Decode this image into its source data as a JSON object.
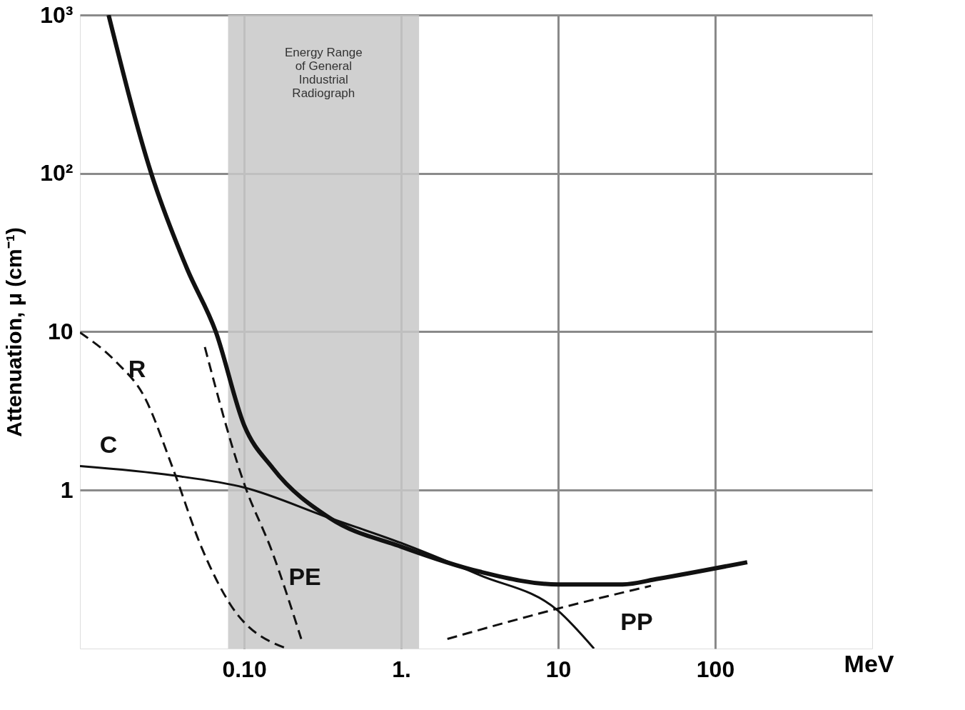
{
  "chart_data": {
    "type": "line",
    "ylabel": "Attenuation, μ (cm⁻¹)",
    "xlabel": "MeV",
    "log": "xy",
    "grid": true,
    "xlim": [
      0.009,
      1000
    ],
    "ylim": [
      0.1,
      1000
    ],
    "xticks": [
      {
        "value": 0.1,
        "label": "0.10"
      },
      {
        "value": 1,
        "label": "1."
      },
      10,
      100
    ],
    "yticks": [
      1,
      10,
      {
        "value": 100,
        "label": "10²"
      },
      {
        "value": 1000,
        "label": "10³"
      }
    ],
    "series": [
      {
        "color": "#111111",
        "line_style": "solid",
        "x": [
          0.0137,
          0.0256,
          0.0433,
          0.066,
          0.1,
          0.152,
          0.351,
          1,
          3.16,
          10,
          25.7,
          43.3,
          160
        ],
        "values": [
          1000,
          100,
          25,
          10,
          2.57,
          1.38,
          0.667,
          0.44,
          0.306,
          0.254,
          0.254,
          0.276,
          0.351
        ]
      },
      {
        "name": "C",
        "color": "#111111",
        "line_style": "solid",
        "x": [
          0.009,
          0.0351,
          0.1,
          0.351,
          1,
          3.16,
          10,
          16.9
        ],
        "values": [
          1.42,
          1.24,
          1.04,
          0.667,
          0.464,
          0.291,
          0.173,
          0.1
        ]
      },
      {
        "name": "R",
        "color": "#111111",
        "line_style": "dashed",
        "x": [
          0.009,
          0.0152,
          0.0231,
          0.0351,
          0.0533,
          0.0811,
          0.187
        ],
        "values": [
          9.9,
          6.5,
          3.9,
          1.38,
          0.44,
          0.192,
          0.1
        ]
      },
      {
        "name": "PE",
        "color": "#111111",
        "line_style": "dashed",
        "x": [
          0.0562,
          0.1,
          0.152,
          0.231
        ],
        "values": [
          8.0,
          1.1,
          0.4,
          0.115
        ]
      },
      {
        "name": "PP",
        "color": "#111111",
        "line_style": "dashed",
        "x": [
          1.97,
          10,
          39
        ],
        "values": [
          0.115,
          0.179,
          0.249
        ]
      }
    ],
    "bands": [
      {
        "axis": "x",
        "from": 0.079,
        "to": 1.3,
        "label": "Energy Range of General Industrial Radiograph",
        "color": "#c8c8c8"
      }
    ]
  }
}
